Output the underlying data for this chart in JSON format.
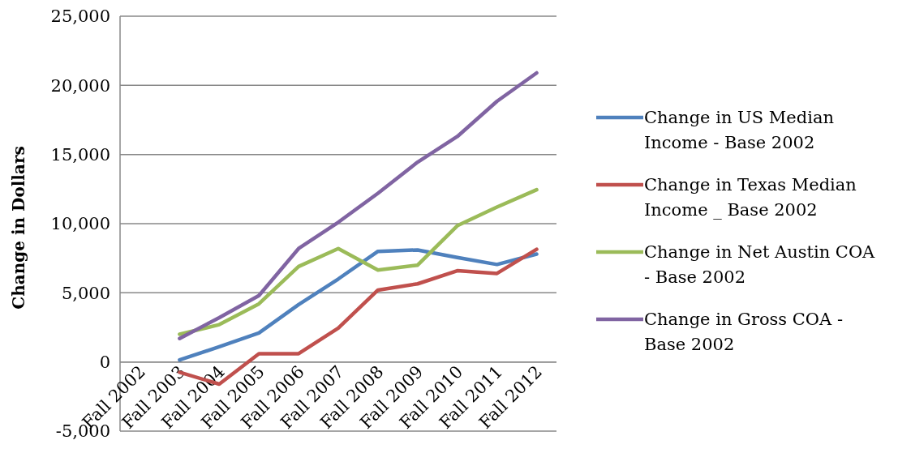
{
  "chart_data": {
    "type": "line",
    "ylabel": "Change in Dollars",
    "categories": [
      "Fall 2002",
      "Fall 2003",
      "Fall 2004",
      "Fall 2005",
      "Fall 2006",
      "Fall 2007",
      "Fall 2008",
      "Fall 2009",
      "Fall 2010",
      "Fall 2011",
      "Fall 2012"
    ],
    "series": [
      {
        "name": "Change in US Median Income - Base 2002",
        "color": "#4f81bd",
        "values": [
          null,
          150,
          1100,
          2100,
          4150,
          6000,
          8000,
          8100,
          7550,
          7050,
          7800
        ]
      },
      {
        "name": "Change in Texas Median Income _ Base 2002",
        "color": "#c0504d",
        "values": [
          null,
          -750,
          -1600,
          600,
          600,
          2450,
          5200,
          5650,
          6600,
          6400,
          8150
        ]
      },
      {
        "name": "Change in Net Austin COA - Base 2002",
        "color": "#9bbb59",
        "values": [
          null,
          2000,
          2700,
          4200,
          6900,
          8200,
          6650,
          7000,
          9850,
          11200,
          12450
        ]
      },
      {
        "name": "Change in Gross COA - Base 2002",
        "color": "#8064a2",
        "values": [
          null,
          1700,
          3200,
          4800,
          8200,
          10100,
          12200,
          14450,
          16300,
          18850,
          20900
        ]
      }
    ],
    "ylim": [
      -5000,
      25000
    ],
    "yticks": [
      {
        "value": -5000,
        "label": "-5,000"
      },
      0,
      {
        "value": 5000,
        "label": "5,000"
      },
      {
        "value": 10000,
        "label": "10,000"
      },
      {
        "value": 15000,
        "label": "15,000"
      },
      {
        "value": 20000,
        "label": "20,000"
      },
      {
        "value": 25000,
        "label": "25,000"
      }
    ],
    "grid": "y",
    "legend": "right",
    "marker": "none",
    "line_style": "solid"
  }
}
